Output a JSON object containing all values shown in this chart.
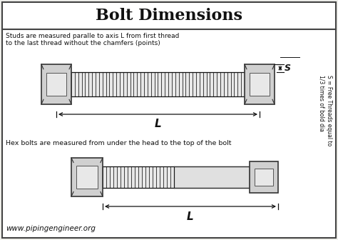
{
  "title": "Bolt Dimensions",
  "title_fontsize": 16,
  "title_fontweight": "bold",
  "background_color": "#f0f0ec",
  "border_color": "#444444",
  "text_color": "#111111",
  "stud_note": "Studs are measured paralle to axis L from first thread\nto the last thread without the chamfers (points)",
  "hex_note": "Hex bolts are measured from under the head to the top of the bolt",
  "side_note": "S = Free Threads equal to\n1/3 times of bold dia",
  "S_label": "S",
  "L_label": "L",
  "website": "www.pipingengineer.org",
  "fig_width": 4.74,
  "fig_height": 3.36,
  "dpi": 100,
  "thread_color": "#111111",
  "nut_outer_color": "#333333",
  "nut_fill": "#d0d0d0",
  "nut_inner_fill": "#e8e8e8",
  "shank_fill": "#e0e0e0"
}
